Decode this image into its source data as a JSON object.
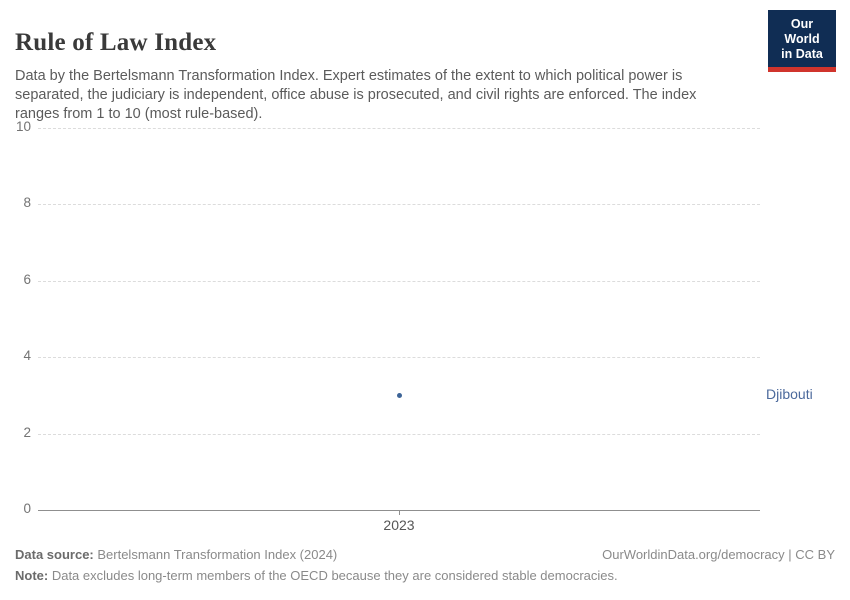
{
  "header": {
    "title": "Rule of Law Index",
    "subtitle": "Data by the Bertelsmann Transformation Index. Expert estimates of the extent to which political power is separated, the judiciary is independent, office abuse is prosecuted, and civil rights are enforced. The index ranges from 1 to 10 (most rule-based).",
    "logo": {
      "line1": "Our World",
      "line2": "in Data",
      "bg_color": "#102d54",
      "accent_color": "#d0342c"
    }
  },
  "chart_data": {
    "type": "scatter",
    "title": "Rule of Law Index",
    "x": [
      2023
    ],
    "xticks": [
      "2023"
    ],
    "series": [
      {
        "name": "Djibouti",
        "values": [
          3
        ],
        "color": "#3d6497",
        "label_color": "#4c6a9c"
      }
    ],
    "ylim": [
      0,
      10
    ],
    "yticks": [
      0,
      2,
      4,
      6,
      8,
      10
    ],
    "grid": "horizontal-dashed",
    "gridline_color": "#dcdcdc",
    "axis_color": "#8f8f8f",
    "legend_position": "entity-label-right-of-plot"
  },
  "footer": {
    "source_label": "Data source:",
    "source_text": " Bertelsmann Transformation Index (2024)",
    "credit": "OurWorldinData.org/democracy | CC BY",
    "note_label": "Note:",
    "note_text": " Data excludes long-term members of the OECD because they are considered stable democracies."
  }
}
